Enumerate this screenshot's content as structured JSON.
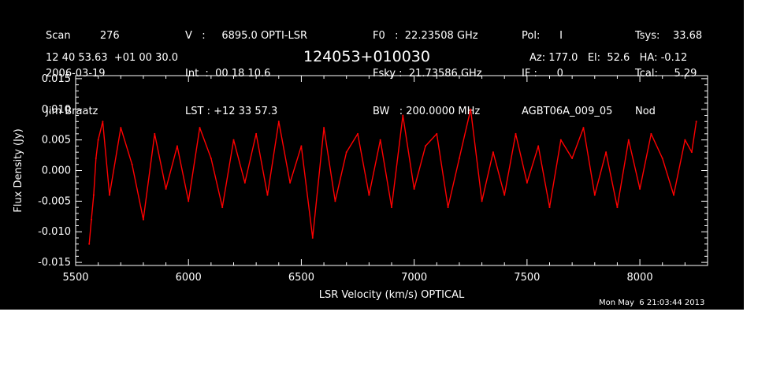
{
  "header": {
    "col1": {
      "scan_label": "Scan",
      "scan_value": "276",
      "date": "2006-03-19",
      "observer": "Jim Braatz"
    },
    "col2": {
      "v_line": "V   :     6895.0 OPTI-LSR",
      "int_line": "Int  :  00 18 10.6",
      "lst_line": "LST : +12 33 57.3"
    },
    "col3": {
      "f0_line": "F0   :  22.23508 GHz",
      "fsky_line": "Fsky :  21.73586 GHz",
      "bw_line": "BW   : 200.0000 MHz"
    },
    "col4": {
      "pol_line": "Pol:      I",
      "if_line": "IF :      0",
      "project": "AGBT06A_009_05"
    },
    "col5": {
      "tsys_line": "Tsys:    33.68",
      "tcal_line": "Tcal:     5.29",
      "mode": "Nod"
    },
    "coords": "12 40 53.63  +01 00 30.0",
    "source": "124053+010030",
    "azel": "Az: 177.0   El:  52.6   HA: -0.12",
    "timestamp": "Mon May  6 21:03:44 2013"
  },
  "colors": {
    "background": "#000000",
    "axes": "#ffffff",
    "trace": "#ff0000",
    "page": "#ffffff"
  },
  "chart_data": {
    "type": "line",
    "title": "124053+010030",
    "xlabel": "LSR Velocity (km/s) OPTICAL",
    "ylabel": "Flux Density (Jy)",
    "xlim": [
      5500,
      8300
    ],
    "ylim": [
      -0.0155,
      0.0155
    ],
    "x_ticks": [
      5500,
      6000,
      6500,
      7000,
      7500,
      8000
    ],
    "x_tick_labels": [
      "5500",
      "6000",
      "6500",
      "7000",
      "7500",
      "8000"
    ],
    "y_ticks": [
      -0.015,
      -0.01,
      -0.005,
      0.0,
      0.005,
      0.01,
      0.015
    ],
    "y_tick_labels": [
      "-0.015",
      "-0.010",
      "-0.005",
      "0.000",
      "0.005",
      "0.010",
      "0.015"
    ],
    "grid": false,
    "series": [
      {
        "x": [
          5560,
          5570,
          5580,
          5590,
          5600,
          5620,
          5650,
          5700,
          5750,
          5800,
          5850,
          5900,
          5950,
          6000,
          6050,
          6100,
          6150,
          6200,
          6250,
          6300,
          6350,
          6400,
          6450,
          6500,
          6550,
          6600,
          6650,
          6700,
          6750,
          6800,
          6850,
          6900,
          6950,
          7000,
          7050,
          7100,
          7150,
          7200,
          7250,
          7300,
          7350,
          7400,
          7450,
          7500,
          7550,
          7600,
          7650,
          7700,
          7750,
          7800,
          7850,
          7900,
          7950,
          8000,
          8050,
          8100,
          8150,
          8200,
          8230,
          8250
        ],
        "y": [
          -0.012,
          -0.008,
          -0.004,
          0.002,
          0.005,
          0.008,
          -0.004,
          0.007,
          0.001,
          -0.008,
          0.006,
          -0.003,
          0.004,
          -0.005,
          0.007,
          0.002,
          -0.006,
          0.005,
          -0.002,
          0.006,
          -0.004,
          0.008,
          -0.002,
          0.004,
          -0.011,
          0.007,
          -0.005,
          0.003,
          0.006,
          -0.004,
          0.005,
          -0.006,
          0.009,
          -0.003,
          0.004,
          0.006,
          -0.006,
          0.002,
          0.01,
          -0.005,
          0.003,
          -0.004,
          0.006,
          -0.002,
          0.004,
          -0.006,
          0.005,
          0.002,
          0.007,
          -0.004,
          0.003,
          -0.006,
          0.005,
          -0.003,
          0.006,
          0.002,
          -0.004,
          0.005,
          0.003,
          0.008
        ]
      }
    ]
  }
}
